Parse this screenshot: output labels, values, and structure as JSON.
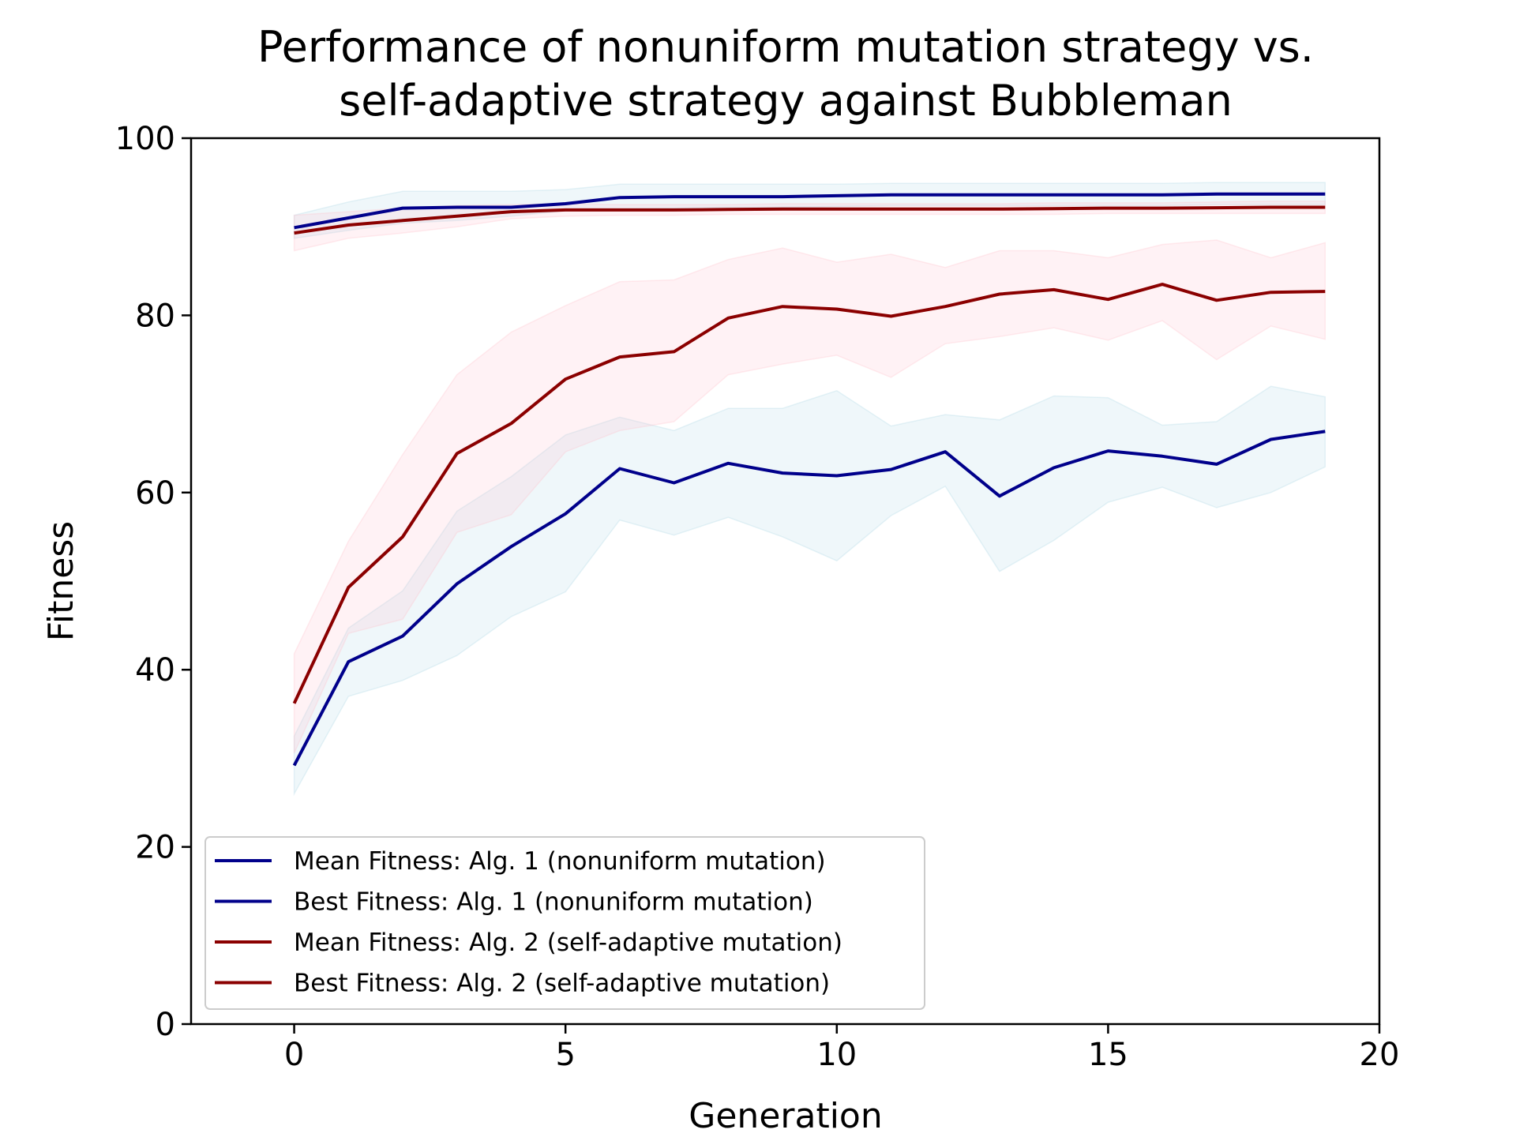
{
  "chart_data": {
    "type": "line",
    "title": [
      "Performance of nonuniform mutation strategy vs.",
      "self-adaptive strategy against Bubbleman"
    ],
    "xlabel": "Generation",
    "ylabel": "Fitness",
    "xlim": [
      -1.9,
      20
    ],
    "ylim": [
      0,
      100
    ],
    "xticks": [
      0,
      5,
      10,
      15,
      20
    ],
    "yticks": [
      0,
      20,
      40,
      60,
      80,
      100
    ],
    "grid": false,
    "legend_position": "lower-left",
    "x": [
      0,
      1,
      2,
      3,
      4,
      5,
      6,
      7,
      8,
      9,
      10,
      11,
      12,
      13,
      14,
      15,
      16,
      17,
      18,
      19
    ],
    "series": [
      {
        "name": "Mean Fitness: Alg. 1 (nonuniform mutation)",
        "color": "#00008b",
        "band_color": "#add8e6",
        "values": [
          29.2,
          40.9,
          43.8,
          49.7,
          53.9,
          57.6,
          62.7,
          61.1,
          63.3,
          62.2,
          61.9,
          62.6,
          64.6,
          59.6,
          62.8,
          64.7,
          64.1,
          63.2,
          66.0,
          66.9
        ],
        "band_low": [
          26.0,
          37.0,
          38.8,
          41.6,
          46.0,
          48.8,
          56.9,
          55.2,
          57.2,
          55.0,
          52.3,
          57.4,
          60.7,
          51.1,
          54.6,
          58.9,
          60.6,
          58.3,
          60.0,
          62.9
        ],
        "band_high": [
          32.5,
          44.7,
          48.9,
          57.9,
          61.8,
          66.5,
          68.5,
          67.0,
          69.5,
          69.5,
          71.5,
          67.5,
          68.8,
          68.2,
          70.9,
          70.7,
          67.6,
          68.0,
          72.0,
          70.8
        ]
      },
      {
        "name": "Best Fitness: Alg. 1 (nonuniform mutation)",
        "color": "#00008b",
        "band_color": "#add8e6",
        "values": [
          89.9,
          91.0,
          92.1,
          92.2,
          92.2,
          92.6,
          93.3,
          93.4,
          93.4,
          93.4,
          93.5,
          93.6,
          93.6,
          93.6,
          93.6,
          93.6,
          93.6,
          93.7,
          93.7,
          93.7
        ],
        "band_low": [
          88.7,
          89.6,
          90.4,
          90.7,
          91.2,
          91.8,
          92.0,
          92.1,
          92.2,
          92.2,
          92.3,
          92.4,
          92.4,
          92.4,
          92.4,
          92.4,
          92.4,
          92.5,
          92.5,
          92.5
        ],
        "band_high": [
          91.3,
          92.8,
          94.0,
          94.0,
          94.0,
          94.2,
          94.8,
          94.8,
          94.8,
          94.8,
          94.8,
          94.9,
          94.9,
          94.9,
          94.9,
          94.9,
          94.9,
          95.0,
          95.0,
          95.0
        ]
      },
      {
        "name": "Mean Fitness: Alg. 2 (self-adaptive mutation)",
        "color": "#8b0000",
        "band_color": "#ffc0cb",
        "values": [
          36.2,
          49.3,
          55.0,
          64.4,
          67.8,
          72.8,
          75.3,
          75.9,
          79.7,
          81.0,
          80.7,
          79.9,
          81.0,
          82.4,
          82.9,
          81.8,
          83.5,
          81.7,
          82.6,
          82.7
        ],
        "band_low": [
          30.6,
          44.1,
          45.7,
          55.5,
          57.5,
          64.6,
          67.0,
          68.0,
          73.3,
          74.5,
          75.5,
          73.0,
          76.8,
          77.6,
          78.6,
          77.2,
          79.4,
          75.0,
          78.8,
          77.3
        ],
        "band_high": [
          41.8,
          54.5,
          64.3,
          73.3,
          78.1,
          81.1,
          83.8,
          84.0,
          86.3,
          87.6,
          86.0,
          86.9,
          85.4,
          87.3,
          87.3,
          86.5,
          88.0,
          88.5,
          86.5,
          88.2
        ]
      },
      {
        "name": "Best Fitness: Alg. 2 (self-adaptive mutation)",
        "color": "#8b0000",
        "band_color": "#ffc0cb",
        "values": [
          89.3,
          90.2,
          90.7,
          91.2,
          91.7,
          91.9,
          91.9,
          91.9,
          91.95,
          92.0,
          92.0,
          92.0,
          92.0,
          92.0,
          92.05,
          92.1,
          92.1,
          92.15,
          92.2,
          92.2
        ],
        "band_low": [
          87.3,
          88.7,
          89.3,
          90.0,
          90.9,
          91.2,
          91.3,
          91.3,
          91.4,
          91.4,
          91.4,
          91.4,
          91.4,
          91.4,
          91.4,
          91.5,
          91.5,
          91.5,
          91.5,
          91.5
        ],
        "band_high": [
          91.3,
          91.7,
          92.1,
          92.4,
          92.5,
          92.6,
          92.5,
          92.5,
          92.5,
          92.6,
          92.6,
          92.6,
          92.6,
          92.6,
          92.7,
          92.7,
          92.7,
          92.8,
          92.9,
          92.9
        ]
      }
    ]
  }
}
